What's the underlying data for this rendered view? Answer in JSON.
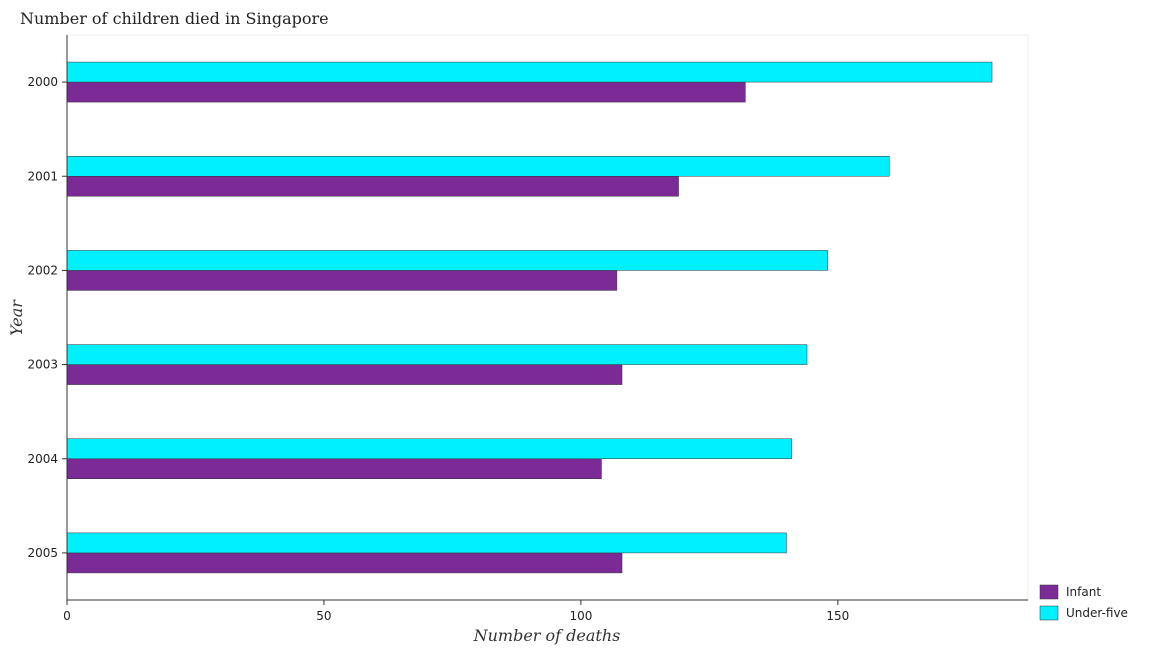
{
  "chart_data": {
    "type": "bar",
    "orientation": "horizontal",
    "title": "Number of children died in Singapore",
    "xlabel": "Number of deaths",
    "ylabel": "Year",
    "categories": [
      "2000",
      "2001",
      "2002",
      "2003",
      "2004",
      "2005"
    ],
    "series": [
      {
        "name": "Infant",
        "color": "#7b2a96",
        "values": [
          132,
          119,
          107,
          108,
          104,
          108
        ]
      },
      {
        "name": "Under-five",
        "color": "#00f0ff",
        "values": [
          180,
          160,
          148,
          144,
          141,
          140
        ]
      }
    ],
    "xlim": [
      0,
      187
    ],
    "xticks": [
      0,
      50,
      100,
      150
    ],
    "grid": false,
    "legend": "bottom-right"
  }
}
